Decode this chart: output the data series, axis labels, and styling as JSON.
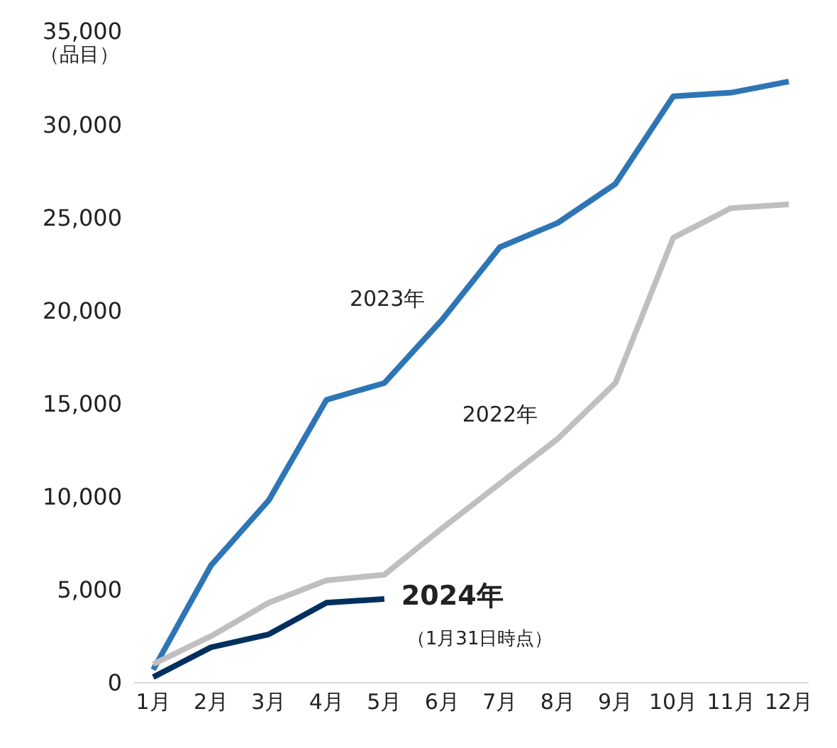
{
  "chart_data": {
    "type": "line",
    "ylabel": "（品目）",
    "categories": [
      "1月",
      "2月",
      "3月",
      "4月",
      "5月",
      "6月",
      "7月",
      "8月",
      "9月",
      "10月",
      "11月",
      "12月"
    ],
    "series": [
      {
        "name": "2023年",
        "color": "#2e75b6",
        "values": [
          700,
          6300,
          9800,
          15200,
          16100,
          19500,
          23400,
          24700,
          26800,
          31500,
          31700,
          32300
        ]
      },
      {
        "name": "2022年",
        "color": "#bfbfbf",
        "values": [
          1000,
          2500,
          4300,
          5500,
          5800,
          8300,
          10700,
          13100,
          16100,
          23900,
          25500,
          25700
        ]
      },
      {
        "name": "2024年",
        "color": "#00305e",
        "values": [
          300,
          1900,
          2600,
          4300,
          4500,
          null,
          null,
          null,
          null,
          null,
          null,
          null
        ]
      }
    ],
    "ylim": [
      0,
      35000
    ],
    "yticks": [
      0,
      {
        "value": 5000,
        "label": "5,000"
      },
      {
        "value": 10000,
        "label": "10,000"
      },
      {
        "value": 15000,
        "label": "15,000"
      },
      {
        "value": 20000,
        "label": "20,000"
      },
      {
        "value": 25000,
        "label": "25,000"
      },
      {
        "value": 30000,
        "label": "30,000"
      },
      {
        "value": 35000,
        "label": "35,000"
      }
    ],
    "annotations": [
      "（1月31日時点）"
    ],
    "grid": false,
    "legend": false,
    "marker": "none",
    "line_style": "solid"
  }
}
